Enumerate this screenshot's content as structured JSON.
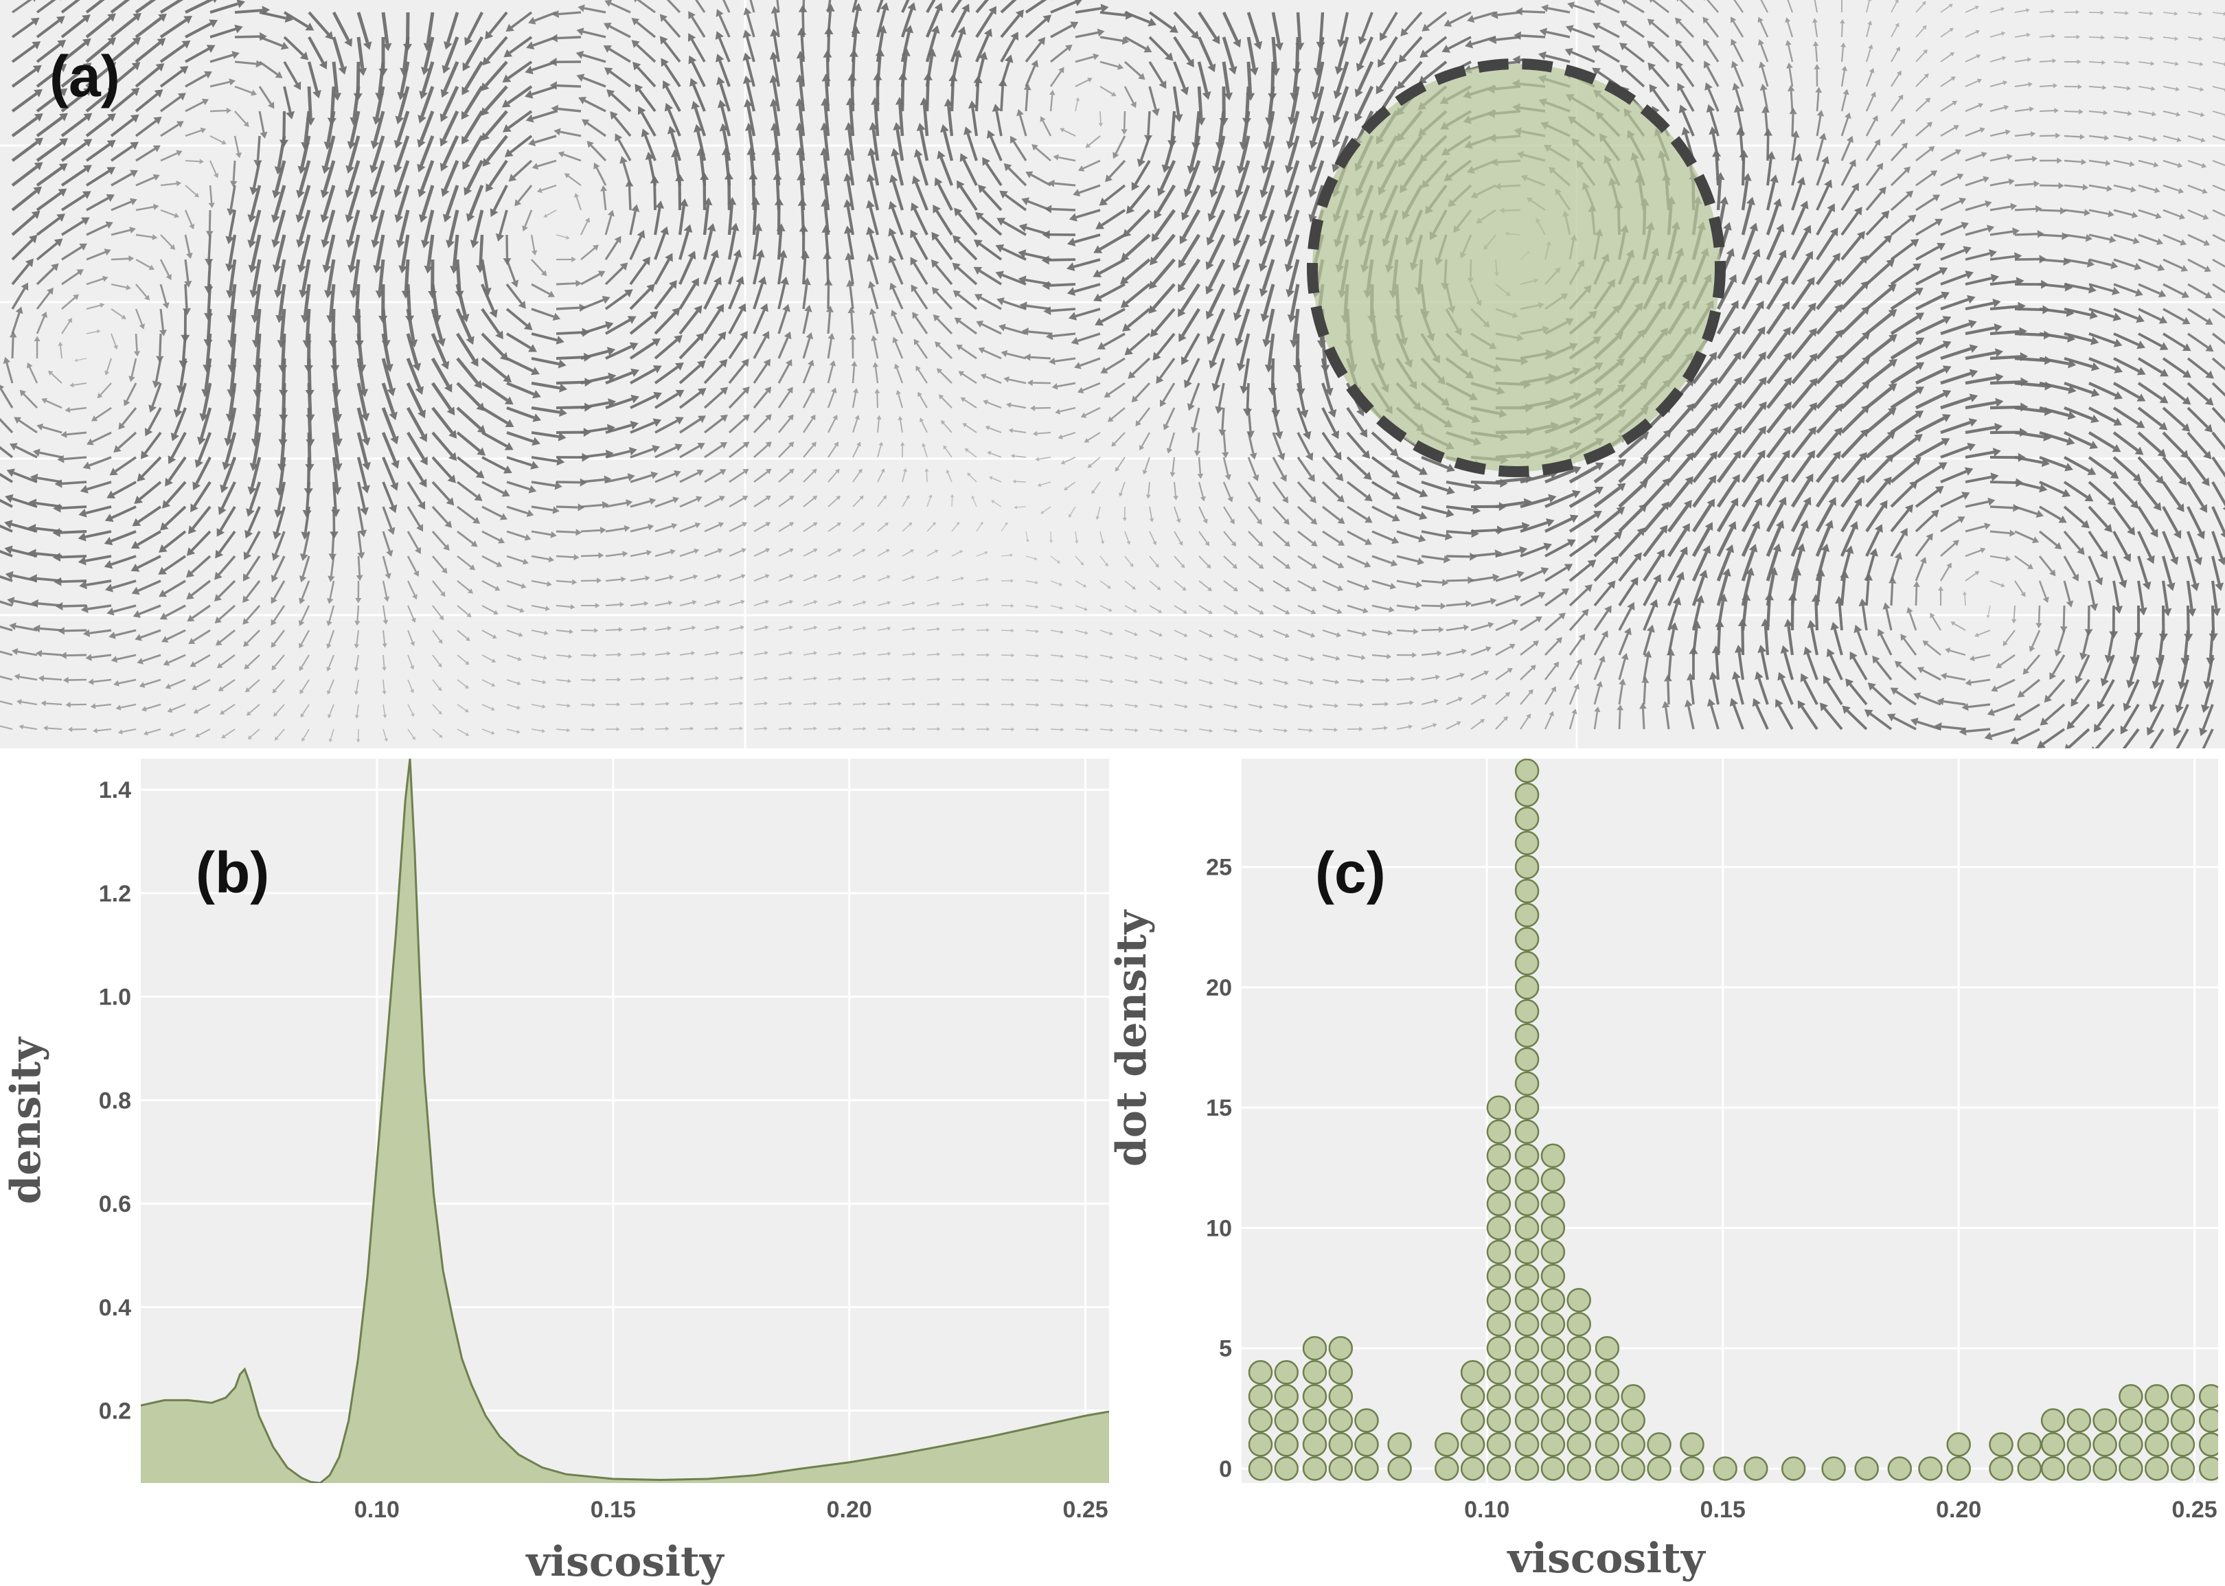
{
  "panels": {
    "a": "(a)",
    "b": "(b)",
    "c": "(c)"
  },
  "colors": {
    "background": "#efefef",
    "grid": "#ffffff",
    "fill_green": "#bfcca4",
    "stroke_green": "#6f7f4e",
    "arrow": "#6e6e6e",
    "tick_text": "#555555"
  },
  "chart_data": [
    {
      "panel": "a",
      "type": "quiver",
      "description_free": true,
      "highlight": {
        "shape": "circle",
        "style": "dashed",
        "fill": "green"
      }
    },
    {
      "panel": "b",
      "type": "area",
      "xlabel": "viscosity",
      "ylabel": "density",
      "xlim": [
        0.05,
        0.255
      ],
      "ylim": [
        0.06,
        1.46
      ],
      "xticks": [
        "0.10",
        "0.15",
        "0.20",
        "0.25"
      ],
      "xtick_values": [
        0.1,
        0.15,
        0.2,
        0.25
      ],
      "yticks": [
        "0.2",
        "0.4",
        "0.6",
        "0.8",
        "1.0",
        "1.2",
        "1.4"
      ],
      "ytick_values": [
        0.2,
        0.4,
        0.6,
        0.8,
        1.0,
        1.2,
        1.4
      ],
      "x": [
        0.05,
        0.055,
        0.06,
        0.065,
        0.068,
        0.07,
        0.071,
        0.072,
        0.073,
        0.075,
        0.078,
        0.081,
        0.084,
        0.086,
        0.088,
        0.09,
        0.092,
        0.094,
        0.096,
        0.098,
        0.1,
        0.102,
        0.104,
        0.105,
        0.106,
        0.107,
        0.108,
        0.109,
        0.11,
        0.112,
        0.114,
        0.116,
        0.118,
        0.12,
        0.123,
        0.126,
        0.13,
        0.135,
        0.14,
        0.15,
        0.16,
        0.17,
        0.18,
        0.19,
        0.2,
        0.21,
        0.22,
        0.23,
        0.24,
        0.25,
        0.255
      ],
      "y": [
        0.21,
        0.22,
        0.22,
        0.215,
        0.225,
        0.245,
        0.27,
        0.28,
        0.255,
        0.19,
        0.13,
        0.09,
        0.07,
        0.062,
        0.06,
        0.075,
        0.11,
        0.18,
        0.3,
        0.46,
        0.68,
        0.9,
        1.12,
        1.25,
        1.38,
        1.46,
        1.28,
        1.05,
        0.85,
        0.62,
        0.47,
        0.38,
        0.3,
        0.25,
        0.19,
        0.15,
        0.115,
        0.09,
        0.077,
        0.068,
        0.066,
        0.068,
        0.075,
        0.088,
        0.1,
        0.115,
        0.132,
        0.15,
        0.17,
        0.19,
        0.198
      ]
    },
    {
      "panel": "c",
      "type": "scatter",
      "subtype": "dot-density",
      "xlabel": "viscosity",
      "ylabel": "dot density",
      "xlim": [
        0.048,
        0.255
      ],
      "ylim": [
        -0.6,
        29.5
      ],
      "xticks": [
        "0.10",
        "0.15",
        "0.20",
        "0.25"
      ],
      "xtick_values": [
        0.1,
        0.15,
        0.2,
        0.25
      ],
      "yticks": [
        "0",
        "5",
        "10",
        "15",
        "20",
        "25"
      ],
      "ytick_values": [
        0,
        5,
        10,
        15,
        20,
        25
      ],
      "columns": [
        {
          "x": 0.052,
          "count": 5
        },
        {
          "x": 0.0575,
          "count": 5
        },
        {
          "x": 0.0635,
          "count": 6
        },
        {
          "x": 0.069,
          "count": 6
        },
        {
          "x": 0.0745,
          "count": 3
        },
        {
          "x": 0.0815,
          "count": 2
        },
        {
          "x": 0.0915,
          "count": 2
        },
        {
          "x": 0.097,
          "count": 5
        },
        {
          "x": 0.1025,
          "count": 16
        },
        {
          "x": 0.1085,
          "count": 30
        },
        {
          "x": 0.114,
          "count": 14
        },
        {
          "x": 0.1195,
          "count": 8
        },
        {
          "x": 0.1255,
          "count": 6
        },
        {
          "x": 0.131,
          "count": 4
        },
        {
          "x": 0.1365,
          "count": 2
        },
        {
          "x": 0.1435,
          "count": 2
        },
        {
          "x": 0.1505,
          "count": 1
        },
        {
          "x": 0.157,
          "count": 1
        },
        {
          "x": 0.165,
          "count": 1
        },
        {
          "x": 0.1735,
          "count": 1
        },
        {
          "x": 0.1805,
          "count": 1
        },
        {
          "x": 0.1875,
          "count": 1
        },
        {
          "x": 0.194,
          "count": 1
        },
        {
          "x": 0.2,
          "count": 2
        },
        {
          "x": 0.209,
          "count": 2
        },
        {
          "x": 0.215,
          "count": 2
        },
        {
          "x": 0.22,
          "count": 3
        },
        {
          "x": 0.2255,
          "count": 3
        },
        {
          "x": 0.231,
          "count": 3
        },
        {
          "x": 0.2365,
          "count": 4
        },
        {
          "x": 0.242,
          "count": 4
        },
        {
          "x": 0.2475,
          "count": 4
        },
        {
          "x": 0.2535,
          "count": 4
        }
      ]
    }
  ]
}
